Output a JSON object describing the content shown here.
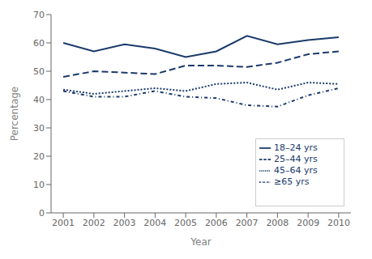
{
  "chart_data": {
    "type": "line",
    "x": [
      2001,
      2002,
      2003,
      2004,
      2005,
      2006,
      2007,
      2008,
      2009,
      2010
    ],
    "series": [
      {
        "name": "18–24 yrs",
        "values": [
          60,
          57,
          59.5,
          58,
          55,
          57,
          62.5,
          59.5,
          61,
          62
        ],
        "line_style": "solid"
      },
      {
        "name": "25–44 yrs",
        "values": [
          48,
          50,
          49.5,
          49,
          52,
          52,
          51.5,
          53,
          56,
          57
        ],
        "line_style": "dashed"
      },
      {
        "name": "45–64 yrs",
        "values": [
          43.5,
          42,
          43,
          44,
          43,
          45.5,
          46,
          43.5,
          46,
          45.5
        ],
        "line_style": "dotted"
      },
      {
        "name": "≥65 yrs",
        "values": [
          43,
          41,
          41,
          43,
          41,
          40.5,
          38,
          37.5,
          41.5,
          44
        ],
        "line_style": "dashdot"
      }
    ],
    "color": "#1a3a6b",
    "xlabel": "Year",
    "ylabel": "Percentage",
    "xlim": [
      2000.6,
      2010.4
    ],
    "xticks": [
      2001,
      2002,
      2003,
      2004,
      2005,
      2006,
      2007,
      2008,
      2009,
      2010
    ],
    "ylim": [
      0,
      70
    ],
    "yticks": [
      0,
      10,
      20,
      30,
      40,
      50,
      60,
      70
    ],
    "grid": false,
    "legend": "lower right"
  }
}
